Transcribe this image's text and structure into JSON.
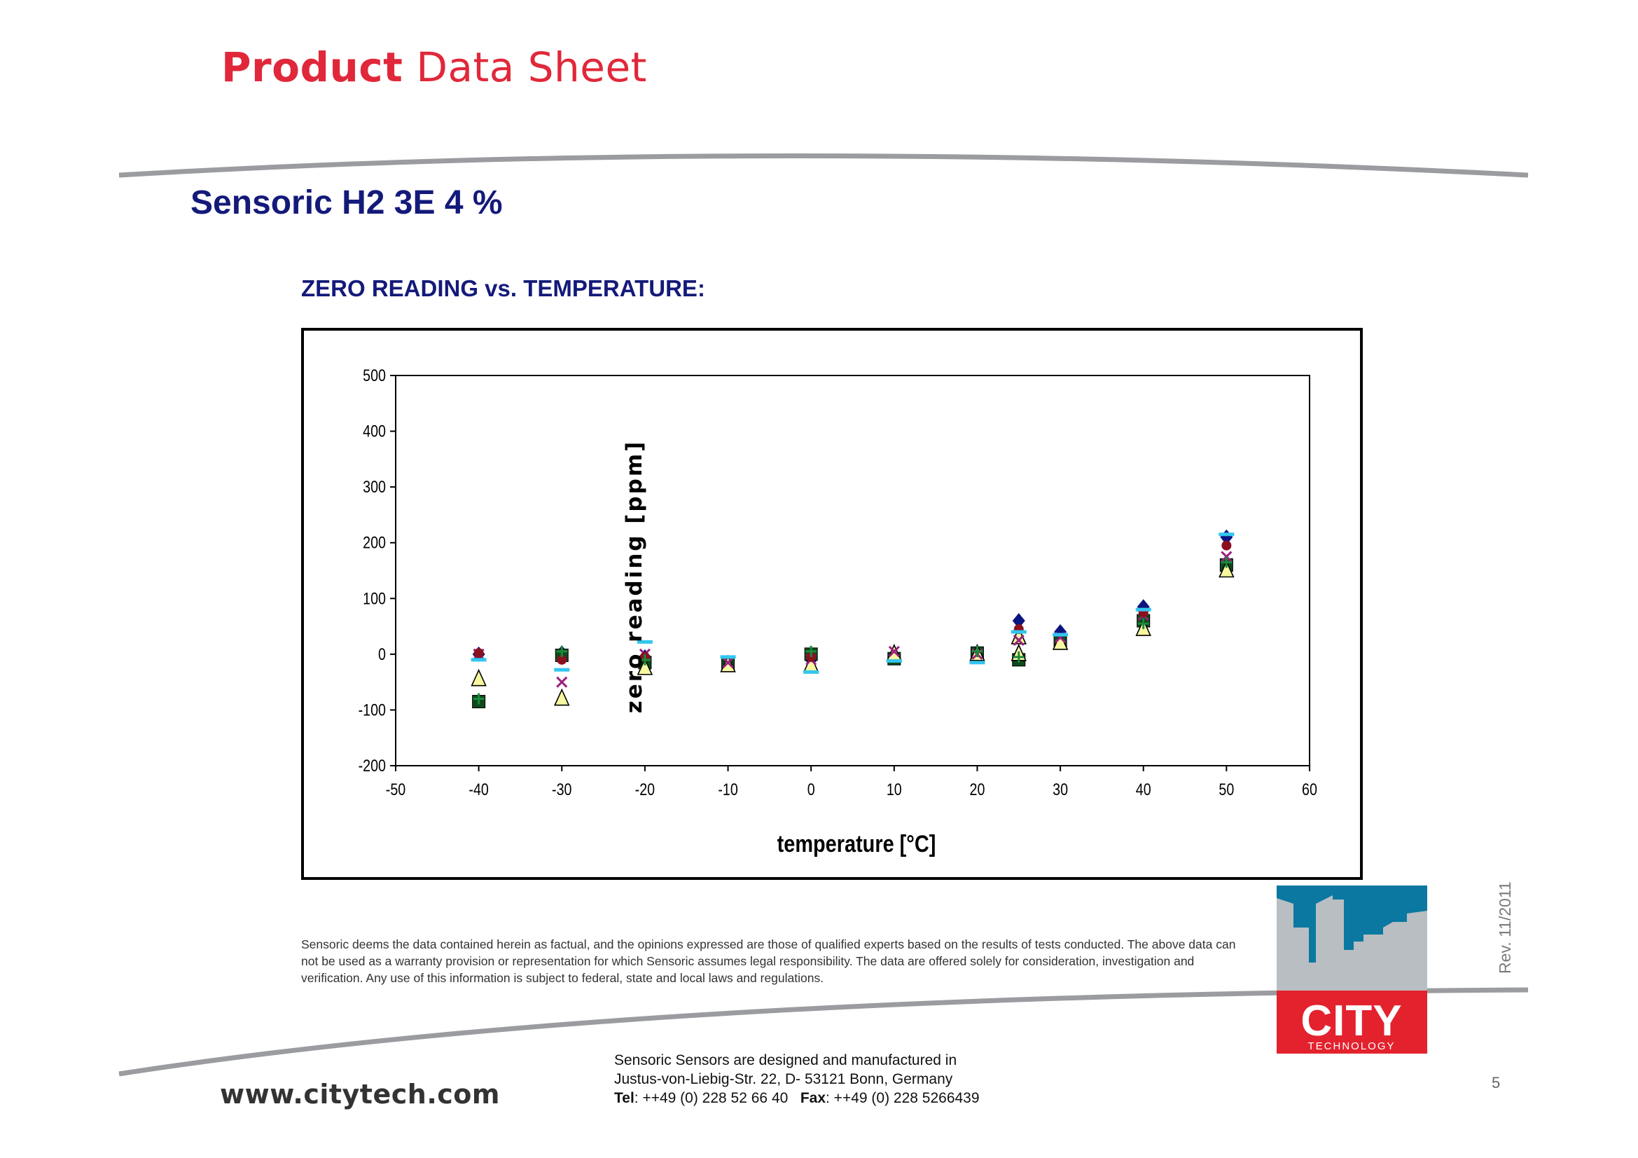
{
  "header": {
    "title_bold": "Product",
    "title_light": "Data Sheet"
  },
  "product_name": "Sensoric H2 3E 4 %",
  "chart_heading": "ZERO READING vs. TEMPERATURE:",
  "chart_data": {
    "type": "scatter",
    "title": "",
    "xlabel": "temperature [°C]",
    "ylabel": "zero reading [ppm]",
    "xlim": [
      -50,
      60
    ],
    "ylim": [
      -200,
      500
    ],
    "xticks": [
      -50,
      -40,
      -30,
      -20,
      -10,
      0,
      10,
      20,
      30,
      40,
      50,
      60
    ],
    "yticks": [
      -200,
      -100,
      0,
      100,
      200,
      300,
      400,
      500
    ],
    "grid": false,
    "legend": "none",
    "series": [
      {
        "marker": "diamond",
        "color": "#0b1580",
        "points": [
          [
            -40,
            0
          ],
          [
            -30,
            2
          ],
          [
            -20,
            -5
          ],
          [
            -10,
            -15
          ],
          [
            0,
            -10
          ],
          [
            10,
            -5
          ],
          [
            20,
            3
          ],
          [
            25,
            60
          ],
          [
            30,
            40
          ],
          [
            40,
            85
          ],
          [
            50,
            210
          ]
        ]
      },
      {
        "marker": "square",
        "color": "#0e4a1c",
        "points": [
          [
            -40,
            -85
          ],
          [
            -30,
            -2
          ],
          [
            -20,
            -15
          ],
          [
            -10,
            -18
          ],
          [
            0,
            0
          ],
          [
            10,
            -8
          ],
          [
            20,
            2
          ],
          [
            25,
            -10
          ],
          [
            30,
            25
          ],
          [
            40,
            60
          ],
          [
            50,
            160
          ]
        ]
      },
      {
        "marker": "triangle",
        "color": "#f7f7a0",
        "points": [
          [
            -40,
            -45
          ],
          [
            -30,
            -80
          ],
          [
            -20,
            -25
          ],
          [
            -10,
            -20
          ],
          [
            0,
            -20
          ],
          [
            10,
            0
          ],
          [
            20,
            0
          ],
          [
            25,
            30
          ],
          [
            25,
            0
          ],
          [
            30,
            20
          ],
          [
            40,
            45
          ],
          [
            50,
            150
          ]
        ]
      },
      {
        "marker": "cross",
        "color": "#9c1f7d",
        "points": [
          [
            -40,
            0
          ],
          [
            -30,
            -50
          ],
          [
            -20,
            0
          ],
          [
            -10,
            -15
          ],
          [
            0,
            -10
          ],
          [
            10,
            5
          ],
          [
            20,
            0
          ],
          [
            25,
            25
          ],
          [
            30,
            30
          ],
          [
            40,
            70
          ],
          [
            50,
            175
          ]
        ]
      },
      {
        "marker": "circle",
        "color": "#8a1020",
        "points": [
          [
            -40,
            2
          ],
          [
            -30,
            -10
          ],
          [
            -20,
            -5
          ],
          [
            0,
            -5
          ],
          [
            25,
            45
          ],
          [
            40,
            75
          ],
          [
            50,
            195
          ]
        ]
      },
      {
        "marker": "dash",
        "color": "#33c6ee",
        "points": [
          [
            -40,
            -10
          ],
          [
            -30,
            -28
          ],
          [
            -20,
            22
          ],
          [
            -10,
            -5
          ],
          [
            0,
            -32
          ],
          [
            10,
            -12
          ],
          [
            20,
            -15
          ],
          [
            25,
            40
          ],
          [
            30,
            35
          ],
          [
            40,
            80
          ],
          [
            50,
            215
          ]
        ]
      },
      {
        "marker": "plus",
        "color": "#1a8a3a",
        "points": [
          [
            -40,
            -80
          ],
          [
            -30,
            5
          ],
          [
            -20,
            -10
          ],
          [
            0,
            5
          ],
          [
            20,
            5
          ],
          [
            25,
            -5
          ],
          [
            40,
            55
          ],
          [
            50,
            165
          ]
        ]
      }
    ]
  },
  "disclaimer": "Sensoric deems the data contained herein as factual, and the opinions expressed are those of qualified experts based on the results of tests conducted. The above data can not be used as a warranty provision or representation for which Sensoric assumes legal responsibility. The data are offered solely for consideration, investigation and verification. Any use of this information is subject to federal, state and local laws and regulations.",
  "revision": "Rev. 11/2011",
  "logo": {
    "name": "CITY",
    "subtitle": "TECHNOLOGY",
    "colors": {
      "sky": "#0a78a0",
      "buildings": "#b9bec2",
      "base": "#e3222e"
    }
  },
  "footer": {
    "website": "www.citytech.com",
    "address_line1": "Sensoric Sensors are designed and manufactured in",
    "address_line2": "Justus-von-Liebig-Str. 22, D- 53121 Bonn, Germany",
    "tel_label": "Tel",
    "tel_value": ": ++49 (0) 228 52 66 40",
    "fax_label": "Fax",
    "fax_value": ": ++49 (0) 228 5266439",
    "page_number": "5"
  }
}
